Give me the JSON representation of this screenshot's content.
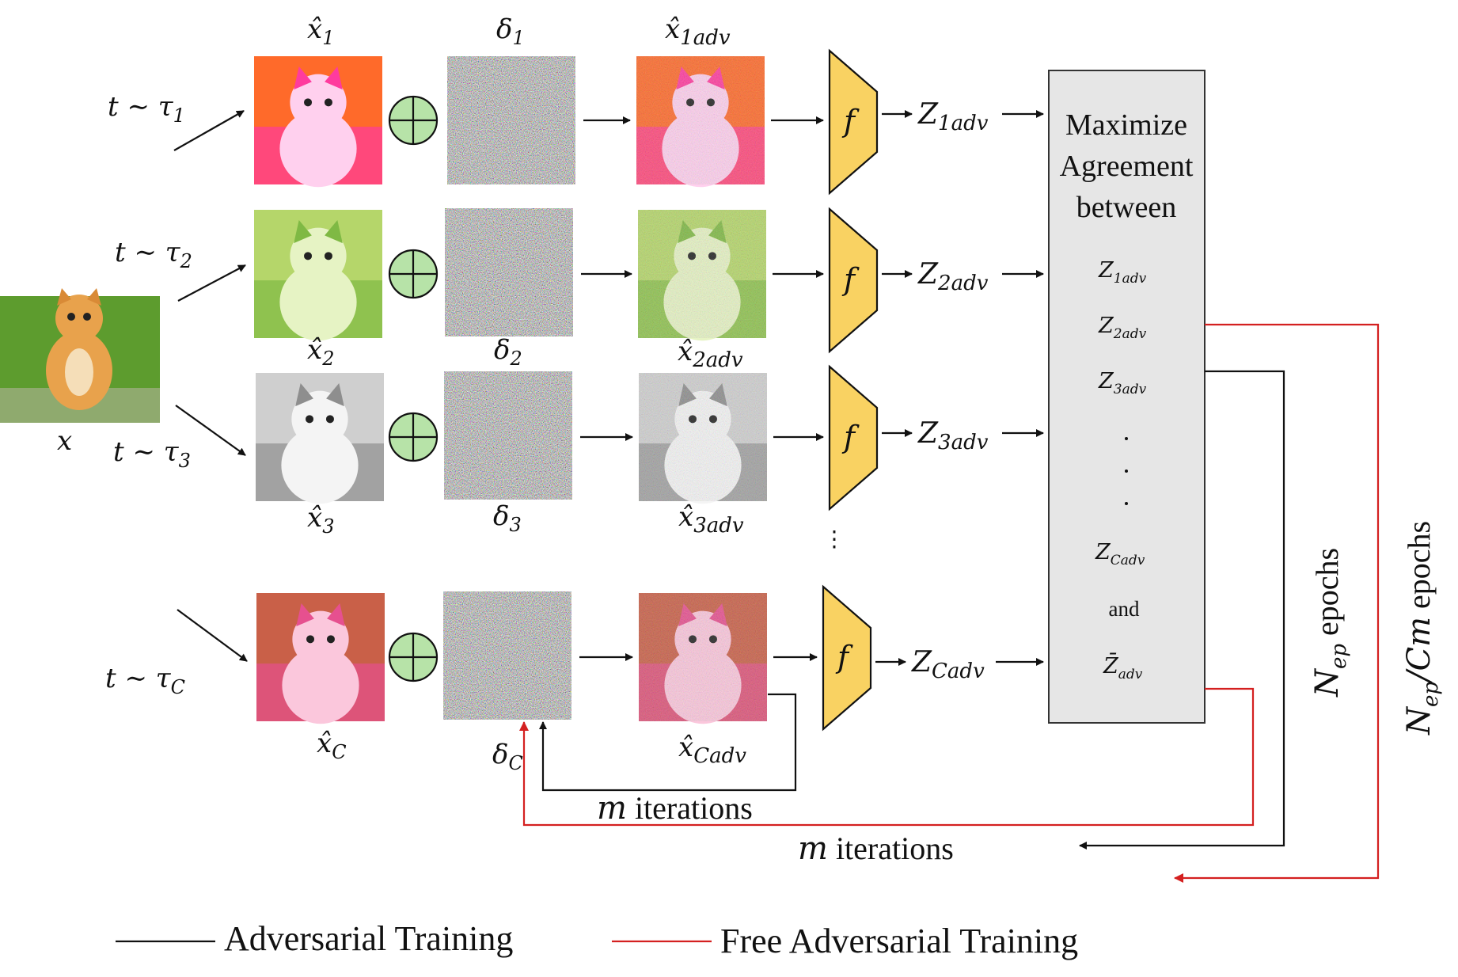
{
  "input": {
    "label": "x"
  },
  "transforms": [
    {
      "t": "t ∼ τ",
      "sub": "1"
    },
    {
      "t": "t ∼ τ",
      "sub": "2"
    },
    {
      "t": "t ∼ τ",
      "sub": "3"
    },
    {
      "t": "t ∼ τ",
      "sub": "C"
    }
  ],
  "views": [
    {
      "xhat": "x̂",
      "sub": "1",
      "delta": "δ",
      "dsub": "1",
      "xadv": "x̂",
      "xadv_sub": "1",
      "xadv_sup": "adv",
      "f": "f",
      "z": "Z",
      "z_sub": "1",
      "z_sup": "adv"
    },
    {
      "xhat": "x̂",
      "sub": "2",
      "delta": "δ",
      "dsub": "2",
      "xadv": "x̂",
      "xadv_sub": "2",
      "xadv_sup": "adv",
      "f": "f",
      "z": "Z",
      "z_sub": "2",
      "z_sup": "adv"
    },
    {
      "xhat": "x̂",
      "sub": "3",
      "delta": "δ",
      "dsub": "3",
      "xadv": "x̂",
      "xadv_sub": "3",
      "xadv_sup": "adv",
      "f": "f",
      "z": "Z",
      "z_sub": "3",
      "z_sup": "adv"
    },
    {
      "xhat": "x̂",
      "sub": "C",
      "delta": "δ",
      "dsub": "C",
      "xadv": "x̂",
      "xadv_sub": "C",
      "xadv_sup": "adv",
      "f": "f",
      "z": "Z",
      "z_sub": "C",
      "z_sup": "adv"
    }
  ],
  "agreement_box": {
    "title_lines": [
      "Maximize",
      "Agreement",
      "between"
    ],
    "items": [
      {
        "z": "Z",
        "sub": "1",
        "sup": "adv"
      },
      {
        "z": "Z",
        "sub": "2",
        "sup": "adv"
      },
      {
        "z": "Z",
        "sub": "3",
        "sup": "adv"
      },
      {
        "z": "Z",
        "sub": "C",
        "sup": "adv"
      }
    ],
    "and_label": "and",
    "zbar": {
      "z": "Z̄",
      "sup": "adv"
    }
  },
  "loops": {
    "inner": {
      "m": "m",
      "text": "iterations"
    },
    "outer": {
      "m": "m",
      "text": "iterations"
    },
    "nep": {
      "n": "N",
      "sub": "ep",
      "text": "epochs"
    },
    "nep_cm": {
      "n": "N",
      "sub": "ep",
      "div": "/Cm",
      "text": "epochs"
    }
  },
  "legend": {
    "adv": "Adversarial Training",
    "free": "Free Adversarial Training"
  },
  "colors": {
    "encoder": "#f9d262",
    "oplus": "#b7e3a8",
    "box": "#e6e6e6",
    "free_line": "#d42020",
    "adv_line": "#111111",
    "views": [
      [
        "#ff3b9e",
        "#ff6a2a",
        "#ffd0ee"
      ],
      [
        "#7fb944",
        "#b5d66a",
        "#e6f3c4"
      ],
      [
        "#8e8e8e",
        "#cfcfcf",
        "#f4f4f4"
      ],
      [
        "#e6508f",
        "#c96048",
        "#fbc7dc"
      ]
    ],
    "cat": [
      "#5d9c2e",
      "#e8a24c",
      "#f5deb8"
    ]
  }
}
